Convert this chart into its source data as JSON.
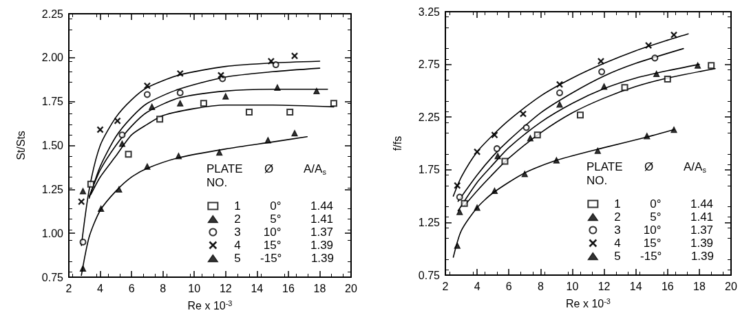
{
  "chart_data": [
    {
      "type": "scatter",
      "xlabel": "Re x 10$^{-3}$",
      "ylabel": "St/Sts",
      "legend_title": "PLATE NO.  Ø  A/A$_{s}$",
      "legend": "bottom right",
      "grid": false,
      "xlim": [
        2,
        20
      ],
      "xticks": [
        2,
        4,
        6,
        8,
        10,
        12,
        14,
        16,
        18,
        20
      ],
      "ylim": [
        0.75,
        2.25
      ],
      "yticks": [
        {
          "value": 0.75,
          "label": "0.75"
        },
        {
          "value": 1,
          "label": "1.00"
        },
        {
          "value": 1.25,
          "label": "1.25"
        },
        {
          "value": 1.5,
          "label": "1.50"
        },
        {
          "value": 1.75,
          "label": "1.75"
        },
        {
          "value": 2,
          "label": "2.00"
        },
        {
          "value": 2.25,
          "label": "2.25"
        }
      ],
      "series": [
        {
          "name": "1  0°  1.44",
          "marker": "square",
          "color": "#000000",
          "x": [
            3.4,
            5.8,
            7.8,
            10.6,
            13.5,
            16.1,
            18.9
          ],
          "values": [
            1.28,
            1.45,
            1.65,
            1.74,
            1.69,
            1.69,
            1.74
          ]
        },
        {
          "name": "2  5°  1.41",
          "marker": "triangle",
          "color": "#000000",
          "x": [
            2.9,
            5.4,
            7.3,
            9.1,
            12.0,
            15.3,
            17.8
          ],
          "values": [
            1.24,
            1.51,
            1.72,
            1.74,
            1.78,
            1.83,
            1.81
          ]
        },
        {
          "name": "3  10°  1.37",
          "marker": "circle",
          "color": "#000000",
          "x": [
            2.9,
            5.4,
            7.0,
            9.1,
            11.8,
            15.2
          ],
          "values": [
            0.95,
            1.56,
            1.79,
            1.8,
            1.88,
            1.96
          ]
        },
        {
          "name": "4  15°  1.39",
          "marker": "cross",
          "color": "#000000",
          "x": [
            2.8,
            4.0,
            5.1,
            7.0,
            9.1,
            11.7,
            14.9,
            16.4
          ],
          "values": [
            1.18,
            1.59,
            1.64,
            1.84,
            1.91,
            1.9,
            1.98,
            2.01
          ]
        },
        {
          "name": "5  -15°  1.39",
          "marker": "triangle",
          "color": "#000000",
          "x": [
            2.9,
            4.05,
            5.2,
            7.0,
            9.0,
            11.6,
            14.7,
            16.4
          ],
          "values": [
            0.8,
            1.14,
            1.25,
            1.38,
            1.44,
            1.46,
            1.53,
            1.57
          ]
        },
        {
          "type": "line",
          "line_style": "solid",
          "color": "#000000",
          "x": [
            3.4,
            4,
            5,
            6,
            7,
            8,
            10,
            12,
            15,
            18.9
          ],
          "values": [
            1.22,
            1.32,
            1.44,
            1.56,
            1.62,
            1.67,
            1.71,
            1.73,
            1.73,
            1.72
          ]
        },
        {
          "type": "line",
          "line_style": "solid",
          "color": "#000000",
          "x": [
            3.3,
            4,
            5,
            6,
            7,
            9,
            12,
            15,
            18.5
          ],
          "values": [
            1.21,
            1.36,
            1.5,
            1.61,
            1.69,
            1.77,
            1.81,
            1.82,
            1.82
          ]
        },
        {
          "type": "line",
          "line_style": "solid",
          "color": "#000000",
          "x": [
            3.3,
            4,
            5,
            6,
            7,
            9,
            12,
            15,
            18
          ],
          "values": [
            1.2,
            1.38,
            1.55,
            1.66,
            1.74,
            1.82,
            1.89,
            1.92,
            1.94
          ]
        },
        {
          "type": "line",
          "line_style": "solid",
          "color": "#000000",
          "x": [
            2.8,
            3.3,
            4,
            5,
            6,
            7,
            9,
            12,
            15,
            18
          ],
          "values": [
            0.93,
            1.25,
            1.5,
            1.66,
            1.76,
            1.83,
            1.9,
            1.95,
            1.97,
            1.98
          ]
        },
        {
          "type": "line",
          "line_style": "solid",
          "color": "#000000",
          "x": [
            2.8,
            3.3,
            4,
            5,
            6,
            7,
            9,
            12,
            15,
            17.2
          ],
          "values": [
            0.76,
            0.98,
            1.13,
            1.24,
            1.32,
            1.37,
            1.43,
            1.48,
            1.52,
            1.55
          ]
        }
      ]
    },
    {
      "type": "scatter",
      "xlabel": "Re x 10$^{-3}$",
      "ylabel": "f/fs",
      "legend_title": "PLATE NO.  Ø  A/A$_{s}$",
      "legend": "bottom right",
      "grid": false,
      "xlim": [
        2,
        20
      ],
      "xticks": [
        2,
        4,
        6,
        8,
        10,
        12,
        14,
        16,
        18,
        20
      ],
      "ylim": [
        0.75,
        3.25
      ],
      "yticks": [
        {
          "value": 0.75,
          "label": "0.75"
        },
        {
          "value": 1.25,
          "label": "1.25"
        },
        {
          "value": 1.75,
          "label": "1.75"
        },
        {
          "value": 2.25,
          "label": "2.25"
        },
        {
          "value": 2.75,
          "label": "2.75"
        },
        {
          "value": 3.25,
          "label": "3.25"
        }
      ],
      "series": [
        {
          "name": "1  0°  1.44",
          "marker": "square",
          "color": "#000000",
          "x": [
            3.2,
            5.75,
            7.8,
            10.5,
            13.3,
            16.0,
            18.75
          ],
          "values": [
            1.43,
            1.83,
            2.08,
            2.27,
            2.53,
            2.61,
            2.74
          ]
        },
        {
          "name": "2  5°  1.41",
          "marker": "triangle",
          "color": "#000000",
          "x": [
            2.9,
            5.3,
            7.35,
            9.2,
            12.0,
            15.3,
            17.9
          ],
          "values": [
            1.35,
            1.88,
            2.05,
            2.37,
            2.54,
            2.66,
            2.74
          ]
        },
        {
          "name": "3  10°  1.37",
          "marker": "circle",
          "color": "#000000",
          "x": [
            2.9,
            5.25,
            7.1,
            9.2,
            11.85,
            15.2
          ],
          "values": [
            1.49,
            1.95,
            2.15,
            2.48,
            2.68,
            2.81
          ]
        },
        {
          "name": "4  15°  1.39",
          "marker": "cross",
          "color": "#000000",
          "x": [
            2.75,
            4.0,
            5.1,
            6.9,
            9.2,
            11.8,
            14.8,
            16.4
          ],
          "values": [
            1.6,
            1.92,
            2.08,
            2.28,
            2.56,
            2.78,
            2.93,
            3.03
          ]
        },
        {
          "name": "5  -15°  1.39",
          "marker": "triangle",
          "color": "#000000",
          "x": [
            2.75,
            4.0,
            5.1,
            7.0,
            9.0,
            11.6,
            14.7,
            16.4
          ],
          "values": [
            1.03,
            1.39,
            1.55,
            1.71,
            1.84,
            1.93,
            2.07,
            2.13
          ]
        },
        {
          "type": "line",
          "line_style": "solid",
          "color": "#000000",
          "x": [
            3.2,
            4,
            5,
            6,
            8,
            10,
            12,
            14,
            16,
            19
          ],
          "values": [
            1.41,
            1.55,
            1.71,
            1.86,
            2.1,
            2.29,
            2.43,
            2.54,
            2.62,
            2.71
          ]
        },
        {
          "type": "line",
          "line_style": "solid",
          "color": "#000000",
          "x": [
            2.8,
            4,
            5,
            6,
            8,
            10,
            12,
            14,
            16,
            18
          ],
          "values": [
            1.36,
            1.63,
            1.8,
            1.96,
            2.2,
            2.38,
            2.52,
            2.62,
            2.69,
            2.75
          ]
        },
        {
          "type": "line",
          "line_style": "solid",
          "color": "#000000",
          "x": [
            2.8,
            4,
            5,
            6,
            8,
            10,
            12,
            14,
            17
          ],
          "values": [
            1.45,
            1.7,
            1.88,
            2.03,
            2.29,
            2.48,
            2.64,
            2.76,
            2.9
          ]
        },
        {
          "type": "line",
          "line_style": "solid",
          "color": "#000000",
          "x": [
            2.5,
            3,
            4,
            5,
            6,
            8,
            10,
            12,
            14,
            16,
            17.3
          ],
          "values": [
            1.5,
            1.68,
            1.92,
            2.08,
            2.22,
            2.45,
            2.62,
            2.76,
            2.88,
            2.98,
            3.04
          ]
        },
        {
          "type": "line",
          "line_style": "solid",
          "color": "#000000",
          "x": [
            2.5,
            3,
            4,
            5,
            7,
            9,
            12,
            14.7,
            16.4
          ],
          "values": [
            0.92,
            1.17,
            1.39,
            1.53,
            1.72,
            1.84,
            1.96,
            2.06,
            2.13
          ]
        }
      ]
    }
  ]
}
